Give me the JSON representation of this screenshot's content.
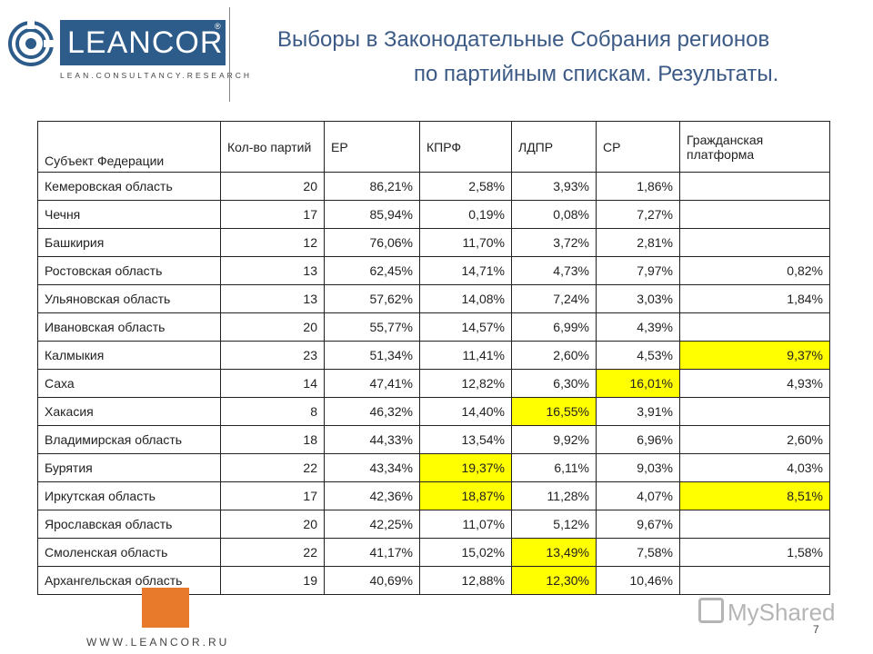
{
  "logo": {
    "name": "LEANCOR",
    "registered": "®",
    "tagline": "LEAN.CONSULTANCY.RESEARCH"
  },
  "title": {
    "line1": "Выборы в Законодательные Собрания регионов",
    "line2": "по партийным спискам. Результаты."
  },
  "table": {
    "headers": [
      "Субъект Федерации",
      "Кол-во партий",
      "ЕР",
      "КПРФ",
      "ЛДПР",
      "СР",
      "Гражданская платформа"
    ],
    "rows": [
      [
        "Кемеровская область",
        "20",
        "86,21%",
        "2,58%",
        "3,93%",
        "1,86%",
        ""
      ],
      [
        "Чечня",
        "17",
        "85,94%",
        "0,19%",
        "0,08%",
        "7,27%",
        ""
      ],
      [
        "Башкирия",
        "12",
        "76,06%",
        "11,70%",
        "3,72%",
        "2,81%",
        ""
      ],
      [
        "Ростовская область",
        "13",
        "62,45%",
        "14,71%",
        "4,73%",
        "7,97%",
        "0,82%"
      ],
      [
        "Ульяновская область",
        "13",
        "57,62%",
        "14,08%",
        "7,24%",
        "3,03%",
        "1,84%"
      ],
      [
        "Ивановская область",
        "20",
        "55,77%",
        "14,57%",
        "6,99%",
        "4,39%",
        ""
      ],
      [
        "Калмыкия",
        "23",
        "51,34%",
        "11,41%",
        "2,60%",
        "4,53%",
        "9,37%"
      ],
      [
        "Саха",
        "14",
        "47,41%",
        "12,82%",
        "6,30%",
        "16,01%",
        "4,93%"
      ],
      [
        "Хакасия",
        "8",
        "46,32%",
        "14,40%",
        "16,55%",
        "3,91%",
        ""
      ],
      [
        "Владимирская область",
        "18",
        "44,33%",
        "13,54%",
        "9,92%",
        "6,96%",
        "2,60%"
      ],
      [
        "Бурятия",
        "22",
        "43,34%",
        "19,37%",
        "6,11%",
        "9,03%",
        "4,03%"
      ],
      [
        "Иркутская область",
        "17",
        "42,36%",
        "18,87%",
        "11,28%",
        "4,07%",
        "8,51%"
      ],
      [
        "Ярославская область",
        "20",
        "42,25%",
        "11,07%",
        "5,12%",
        "9,67%",
        ""
      ],
      [
        "Смоленская область",
        "22",
        "41,17%",
        "15,02%",
        "13,49%",
        "7,58%",
        "1,58%"
      ],
      [
        "Архангельская область",
        "19",
        "40,69%",
        "12,88%",
        "12,30%",
        "10,46%",
        ""
      ]
    ],
    "highlight_color": "#ffff00",
    "highlights": [
      [
        6,
        6
      ],
      [
        7,
        5
      ],
      [
        8,
        4
      ],
      [
        10,
        3
      ],
      [
        11,
        3
      ],
      [
        11,
        6
      ],
      [
        13,
        4
      ],
      [
        14,
        4
      ]
    ]
  },
  "footer": {
    "website": "WWW.LEANCOR.RU",
    "page_number": "7",
    "watermark": "MyShared"
  }
}
